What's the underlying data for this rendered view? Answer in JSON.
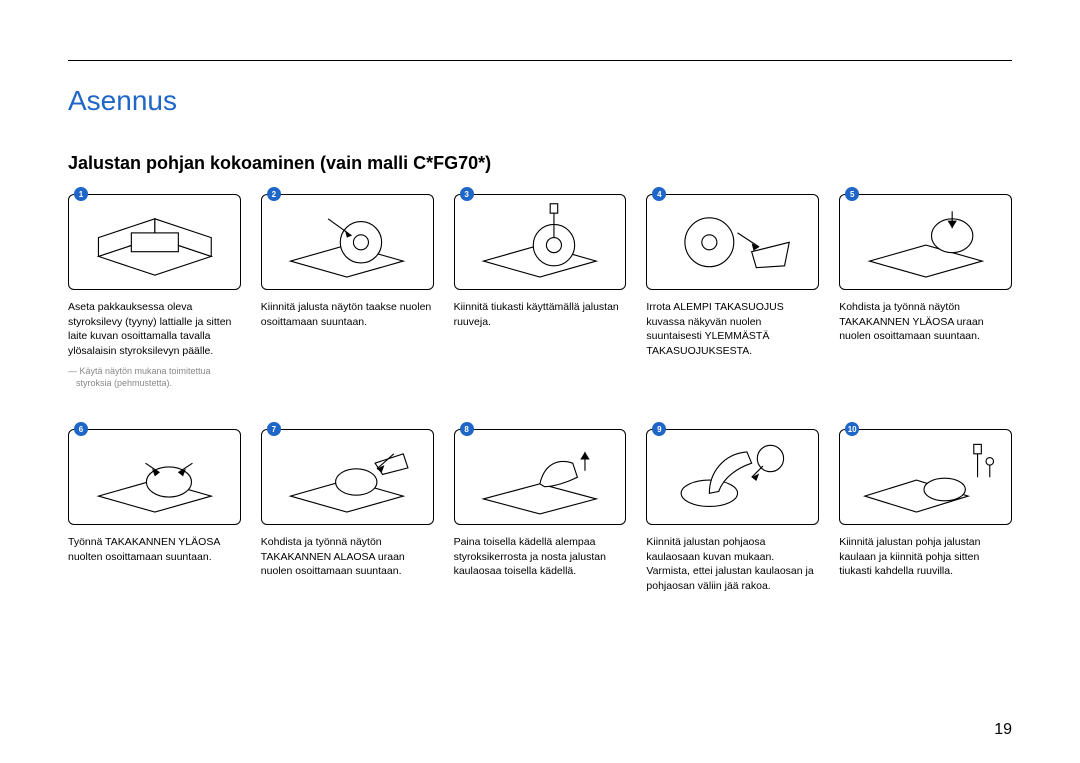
{
  "page": {
    "title": "Asennus",
    "title_color": "#1e66c8",
    "subtitle": "Jalustan pohjan kokoaminen (vain malli C*FG70*)",
    "page_number": "19",
    "badge_color": "#1e66c8",
    "badge_text_color": "#ffffff"
  },
  "steps": [
    {
      "n": "1",
      "desc": "Aseta pakkauksessa oleva styroksilevy (tyyny) lattialle ja sitten laite kuvan osoittamalla tavalla ylösalaisin styroksilevyn päälle.",
      "note": "― Käytä näytön mukana toimitettua styroksia (pehmustetta)."
    },
    {
      "n": "2",
      "desc": "Kiinnitä jalusta näytön taakse nuolen osoittamaan suuntaan."
    },
    {
      "n": "3",
      "desc": "Kiinnitä tiukasti käyttämällä jalustan ruuveja."
    },
    {
      "n": "4",
      "desc": "Irrota ALEMPI TAKASUOJUS kuvassa näkyvän nuolen suuntaisesti YLEMMÄSTÄ TAKASUOJUKSESTA."
    },
    {
      "n": "5",
      "desc": "Kohdista ja työnnä näytön TAKAKANNEN YLÄOSA uraan nuolen osoittamaan suuntaan."
    },
    {
      "n": "6",
      "desc": "Työnnä TAKAKANNEN YLÄOSA nuolten osoittamaan suuntaan."
    },
    {
      "n": "7",
      "desc": "Kohdista ja työnnä näytön TAKAKANNEN ALAOSA uraan nuolen osoittamaan suuntaan."
    },
    {
      "n": "8",
      "desc": "Paina toisella kädellä alempaa styroksikerrosta ja nosta jalustan kaulaosaa toisella kädellä."
    },
    {
      "n": "9",
      "desc": "Kiinnitä jalustan pohjaosa kaulaosaan kuvan mukaan. Varmista, ettei jalustan kaulaosan ja pohjaosan väliin jää rakoa."
    },
    {
      "n": "10",
      "desc": "Kiinnitä jalustan pohja jalustan kaulaan ja kiinnitä pohja sitten tiukasti kahdella ruuvilla."
    }
  ]
}
